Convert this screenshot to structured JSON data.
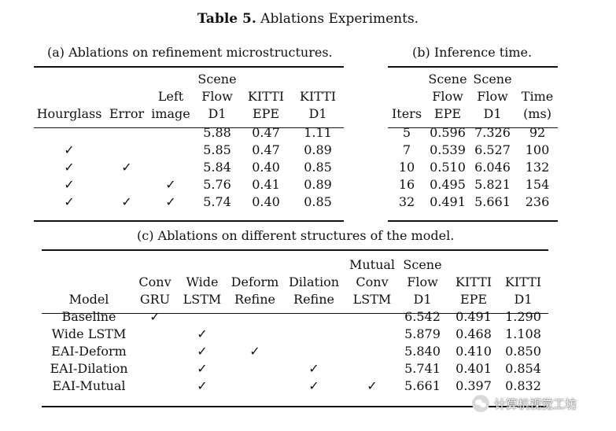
{
  "caption": {
    "label": "Table 5.",
    "text": " Ablations Experiments."
  },
  "table_a": {
    "subcaption": "(a) Ablations on refinement microstructures.",
    "headers": [
      [
        "Hourglass"
      ],
      [
        "Error"
      ],
      [
        "Left",
        "image"
      ],
      [
        "Scene",
        "Flow",
        "D1"
      ],
      [
        "KITTI",
        "EPE"
      ],
      [
        "KITTI",
        "D1"
      ]
    ],
    "rows": [
      [
        "",
        "",
        "",
        "5.88",
        "0.47",
        "1.11"
      ],
      [
        "✓",
        "",
        "",
        "5.85",
        "0.47",
        "0.89"
      ],
      [
        "✓",
        "✓",
        "",
        "5.84",
        "0.40",
        "0.85"
      ],
      [
        "✓",
        "",
        "✓",
        "5.76",
        "0.41",
        "0.89"
      ],
      [
        "✓",
        "✓",
        "✓",
        "5.74",
        "0.40",
        "0.85"
      ]
    ]
  },
  "table_b": {
    "subcaption": "(b) Inference time.",
    "headers": [
      [
        "Iters"
      ],
      [
        "Scene",
        "Flow",
        "EPE"
      ],
      [
        "Scene",
        "Flow",
        "D1"
      ],
      [
        "Time",
        "(ms)"
      ]
    ],
    "rows": [
      [
        "5",
        "0.596",
        "7.326",
        "92"
      ],
      [
        "7",
        "0.539",
        "6.527",
        "100"
      ],
      [
        "10",
        "0.510",
        "6.046",
        "132"
      ],
      [
        "16",
        "0.495",
        "5.821",
        "154"
      ],
      [
        "32",
        "0.491",
        "5.661",
        "236"
      ]
    ]
  },
  "table_c": {
    "subcaption": "(c) Ablations on different structures of the model.",
    "headers": [
      [
        "Model"
      ],
      [
        "Conv",
        "GRU"
      ],
      [
        "Wide",
        "LSTM"
      ],
      [
        "Deform",
        "Refine"
      ],
      [
        "Dilation",
        "Refine"
      ],
      [
        "Mutual",
        "Conv",
        "LSTM"
      ],
      [
        "Scene",
        "Flow",
        "D1"
      ],
      [
        "KITTI",
        "EPE"
      ],
      [
        "KITTI",
        "D1"
      ]
    ],
    "rows": [
      [
        "Baseline",
        "✓",
        "",
        "",
        "",
        "",
        "6.542",
        "0.491",
        "1.290"
      ],
      [
        "Wide LSTM",
        "",
        "✓",
        "",
        "",
        "",
        "5.879",
        "0.468",
        "1.108"
      ],
      [
        "EAI-Deform",
        "",
        "✓",
        "✓",
        "",
        "",
        "5.840",
        "0.410",
        "0.850"
      ],
      [
        "EAI-Dilation",
        "",
        "✓",
        "",
        "✓",
        "",
        "5.741",
        "0.401",
        "0.854"
      ],
      [
        "EAI-Mutual",
        "",
        "✓",
        "",
        "✓",
        "✓",
        "5.661",
        "0.397",
        "0.832"
      ]
    ]
  },
  "watermark": {
    "text": "计算机视觉工坊"
  }
}
